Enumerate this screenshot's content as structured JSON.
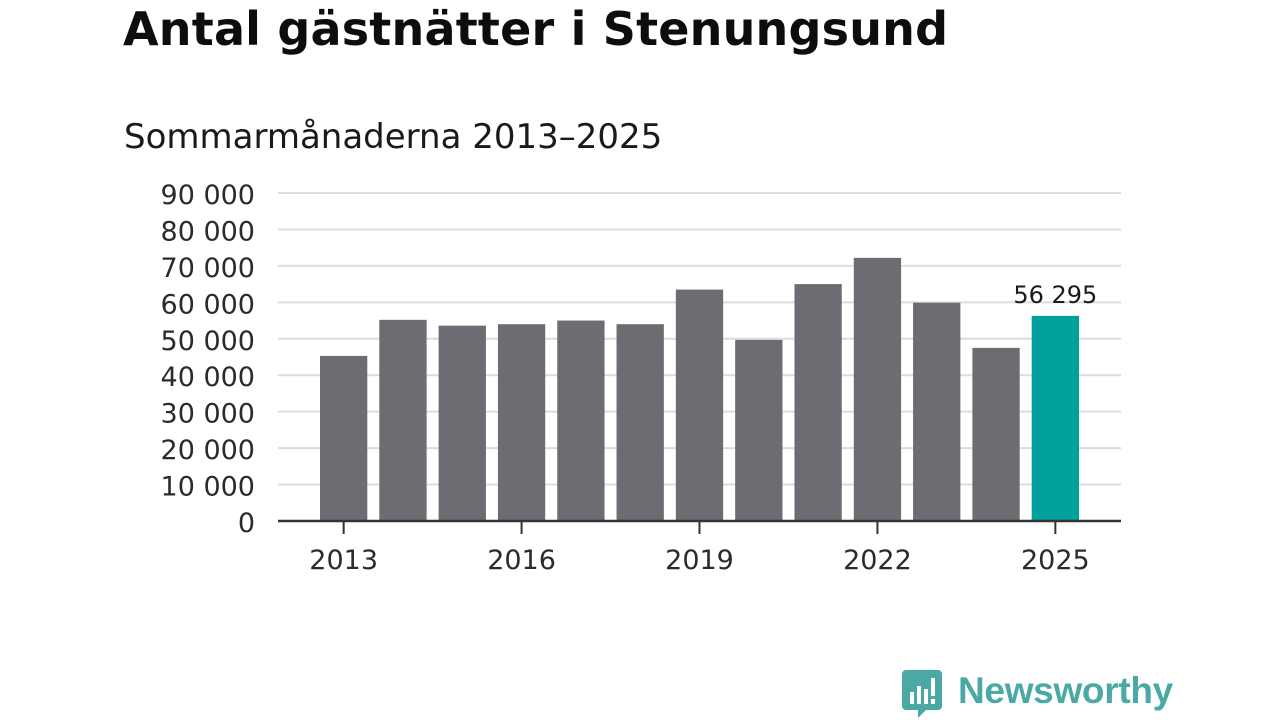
{
  "title": "Antal gästnätter i Stenungsund",
  "subtitle": "Sommarmånaderna 2013–2025",
  "brand": {
    "name": "Newsworthy",
    "icon": "newsworthy-logo-icon",
    "color": "#4aa9a4"
  },
  "chart_data": {
    "type": "bar",
    "title": "Antal gästnätter i Stenungsund",
    "subtitle": "Sommarmånaderna 2013–2025",
    "xlabel": "",
    "ylabel": "",
    "categories": [
      "2013",
      "2014",
      "2015",
      "2016",
      "2017",
      "2018",
      "2019",
      "2020",
      "2021",
      "2022",
      "2023",
      "2024",
      "2025"
    ],
    "values": [
      45300,
      55200,
      53600,
      54000,
      55000,
      54000,
      63500,
      49700,
      65000,
      72200,
      59900,
      47500,
      56295
    ],
    "x_tick_labels": [
      "2013",
      "2016",
      "2019",
      "2022",
      "2025"
    ],
    "y_ticks": [
      0,
      10000,
      20000,
      30000,
      40000,
      50000,
      60000,
      70000,
      80000,
      90000
    ],
    "y_tick_labels": [
      "0",
      "10 000",
      "20 000",
      "30 000",
      "40 000",
      "50 000",
      "60 000",
      "70 000",
      "80 000",
      "90 000"
    ],
    "ylim": [
      0,
      90000
    ],
    "grid": true,
    "bar_color": "#6d6c73",
    "highlight_color": "#00a19a",
    "highlight_index": 12,
    "data_labels": [
      {
        "index": 12,
        "text": "56 295"
      }
    ]
  }
}
